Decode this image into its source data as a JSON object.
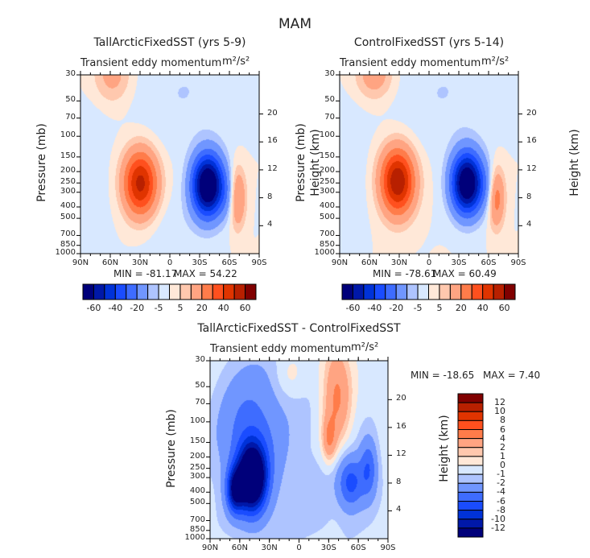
{
  "figure_title": "MAM",
  "chart_data": [
    {
      "type": "heatmap",
      "title": "TallArcticFixedSST (yrs 5-9)",
      "subtitle_left": "Transient eddy momentum",
      "units": "m²/s²",
      "ylabel": "Pressure (mb)",
      "ylabel_right": "Height (km)",
      "x_ticks": [
        "90N",
        "60N",
        "30N",
        "0",
        "30S",
        "60S",
        "90S"
      ],
      "y_ticks": [
        "30",
        "50",
        "70",
        "100",
        "150",
        "200",
        "250",
        "300",
        "400",
        "500",
        "700",
        "850",
        "1000"
      ],
      "y_ticks_values": [
        30,
        50,
        70,
        100,
        150,
        200,
        250,
        300,
        400,
        500,
        700,
        850,
        1000
      ],
      "y_right_ticks": [
        "20",
        "16",
        "12",
        "8",
        "4"
      ],
      "y_scale": "log",
      "ylim": [
        1000,
        30
      ],
      "min_label": "MIN = -81.17",
      "max_label": "MAX =  54.22",
      "min": -81.17,
      "max": 54.22,
      "levels": [
        -60,
        -50,
        -40,
        -30,
        -20,
        -10,
        -5,
        0,
        5,
        10,
        20,
        30,
        40,
        50,
        60
      ],
      "colorbar_labels": [
        "-60",
        "-40",
        "-20",
        "-5",
        "5",
        "20",
        "40",
        "60"
      ]
    },
    {
      "type": "heatmap",
      "title": "ControlFixedSST (yrs 5-14)",
      "subtitle_left": "Transient eddy momentum",
      "units": "m²/s²",
      "ylabel": "Pressure (mb)",
      "ylabel_right": "Height (km)",
      "x_ticks": [
        "90N",
        "60N",
        "30N",
        "0",
        "30S",
        "60S",
        "90S"
      ],
      "y_ticks": [
        "30",
        "50",
        "70",
        "100",
        "150",
        "200",
        "250",
        "300",
        "400",
        "500",
        "700",
        "850",
        "1000"
      ],
      "y_ticks_values": [
        30,
        50,
        70,
        100,
        150,
        200,
        250,
        300,
        400,
        500,
        700,
        850,
        1000
      ],
      "y_right_ticks": [
        "20",
        "16",
        "12",
        "8",
        "4"
      ],
      "y_scale": "log",
      "ylim": [
        1000,
        30
      ],
      "min_label": "MIN = -78.61",
      "max_label": "MAX =  60.49",
      "min": -78.61,
      "max": 60.49,
      "levels": [
        -60,
        -50,
        -40,
        -30,
        -20,
        -10,
        -5,
        0,
        5,
        10,
        20,
        30,
        40,
        50,
        60
      ],
      "colorbar_labels": [
        "-60",
        "-40",
        "-20",
        "-5",
        "5",
        "20",
        "40",
        "60"
      ]
    },
    {
      "type": "heatmap",
      "title": "TallArcticFixedSST - ControlFixedSST",
      "subtitle_left": "Transient eddy momentum",
      "units": "m²/s²",
      "ylabel": "Pressure (mb)",
      "ylabel_right": "Height (km)",
      "x_ticks": [
        "90N",
        "60N",
        "30N",
        "0",
        "30S",
        "60S",
        "90S"
      ],
      "y_ticks": [
        "30",
        "50",
        "70",
        "100",
        "150",
        "200",
        "250",
        "300",
        "400",
        "500",
        "700",
        "850",
        "1000"
      ],
      "y_ticks_values": [
        30,
        50,
        70,
        100,
        150,
        200,
        250,
        300,
        400,
        500,
        700,
        850,
        1000
      ],
      "y_right_ticks": [
        "20",
        "16",
        "12",
        "8",
        "4"
      ],
      "y_scale": "log",
      "ylim": [
        1000,
        30
      ],
      "min_label": "MIN = -18.65",
      "max_label": "MAX =    7.40",
      "min": -18.65,
      "max": 7.4,
      "levels": [
        -12,
        -10,
        -8,
        -6,
        -4,
        -2,
        -1,
        0,
        1,
        2,
        4,
        6,
        8,
        10,
        12
      ],
      "colorbar_labels": [
        "12",
        "10",
        "8",
        "6",
        "4",
        "2",
        "1",
        "0",
        "-1",
        "-2",
        "-4",
        "-6",
        "-8",
        "-10",
        "-12"
      ]
    }
  ],
  "colors": [
    "#00007a",
    "#0018a8",
    "#0032d8",
    "#1a4cff",
    "#3e6cff",
    "#7096ff",
    "#aec4ff",
    "#d8e8ff",
    "#ffe8d8",
    "#ffc8ae",
    "#ffa482",
    "#ff7c4a",
    "#ff501e",
    "#e03400",
    "#b82000",
    "#800000"
  ]
}
